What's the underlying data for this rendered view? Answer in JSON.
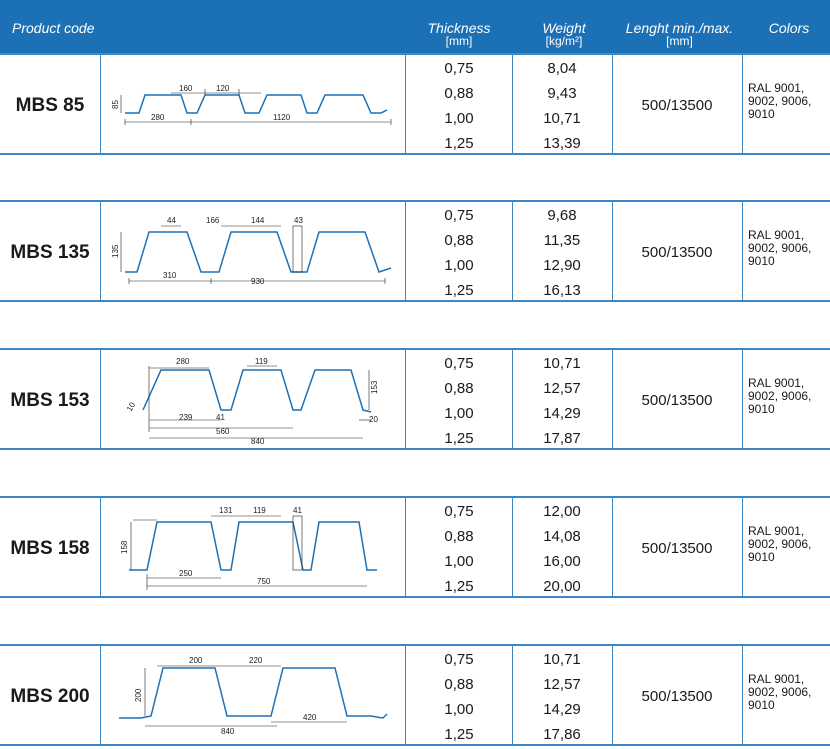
{
  "header": {
    "product_code": "Product code",
    "thickness": "Thickness",
    "thickness_unit": "[mm]",
    "weight": "Weight",
    "weight_unit": "[kg/m²]",
    "length": "Lenght min./max.",
    "length_unit": "[mm]",
    "colors": "Colors"
  },
  "products": [
    {
      "code": "MBS 85",
      "thickness": [
        "0,75",
        "0,88",
        "1,00",
        "1,25"
      ],
      "weight": [
        "8,04",
        "9,43",
        "10,71",
        "13,39"
      ],
      "length": "500/13500",
      "colors": "RAL 9001, 9002, 9006, 9010",
      "dims": [
        "160",
        "120",
        "280",
        "1120",
        "85"
      ]
    },
    {
      "code": "MBS 135",
      "thickness": [
        "0,75",
        "0,88",
        "1,00",
        "1,25"
      ],
      "weight": [
        "9,68",
        "11,35",
        "12,90",
        "16,13"
      ],
      "length": "500/13500",
      "colors": "RAL 9001, 9002, 9006, 9010",
      "dims": [
        "44",
        "166",
        "144",
        "43",
        "135",
        "310",
        "930"
      ]
    },
    {
      "code": "MBS 153",
      "thickness": [
        "0,75",
        "0,88",
        "1,00",
        "1,25"
      ],
      "weight": [
        "10,71",
        "12,57",
        "14,29",
        "17,87"
      ],
      "length": "500/13500",
      "colors": "RAL 9001, 9002, 9006, 9010",
      "dims": [
        "280",
        "119",
        "10",
        "239",
        "41",
        "560",
        "840",
        "153",
        "20"
      ]
    },
    {
      "code": "MBS 158",
      "thickness": [
        "0,75",
        "0,88",
        "1,00",
        "1,25"
      ],
      "weight": [
        "12,00",
        "14,08",
        "16,00",
        "20,00"
      ],
      "length": "500/13500",
      "colors": "RAL 9001, 9002, 9006, 9010",
      "dims": [
        "131",
        "119",
        "41",
        "158",
        "250",
        "750"
      ]
    },
    {
      "code": "MBS 200",
      "thickness": [
        "0,75",
        "0,88",
        "1,00",
        "1,25"
      ],
      "weight": [
        "10,71",
        "12,57",
        "14,29",
        "17,86"
      ],
      "length": "500/13500",
      "colors": "RAL 9001, 9002, 9006, 9010",
      "dims": [
        "200",
        "220",
        "200",
        "840",
        "420"
      ]
    }
  ],
  "colors_theme": {
    "header_bg": "#1c71b6",
    "line": "#3d87c4",
    "profile": "#1c71b6"
  }
}
